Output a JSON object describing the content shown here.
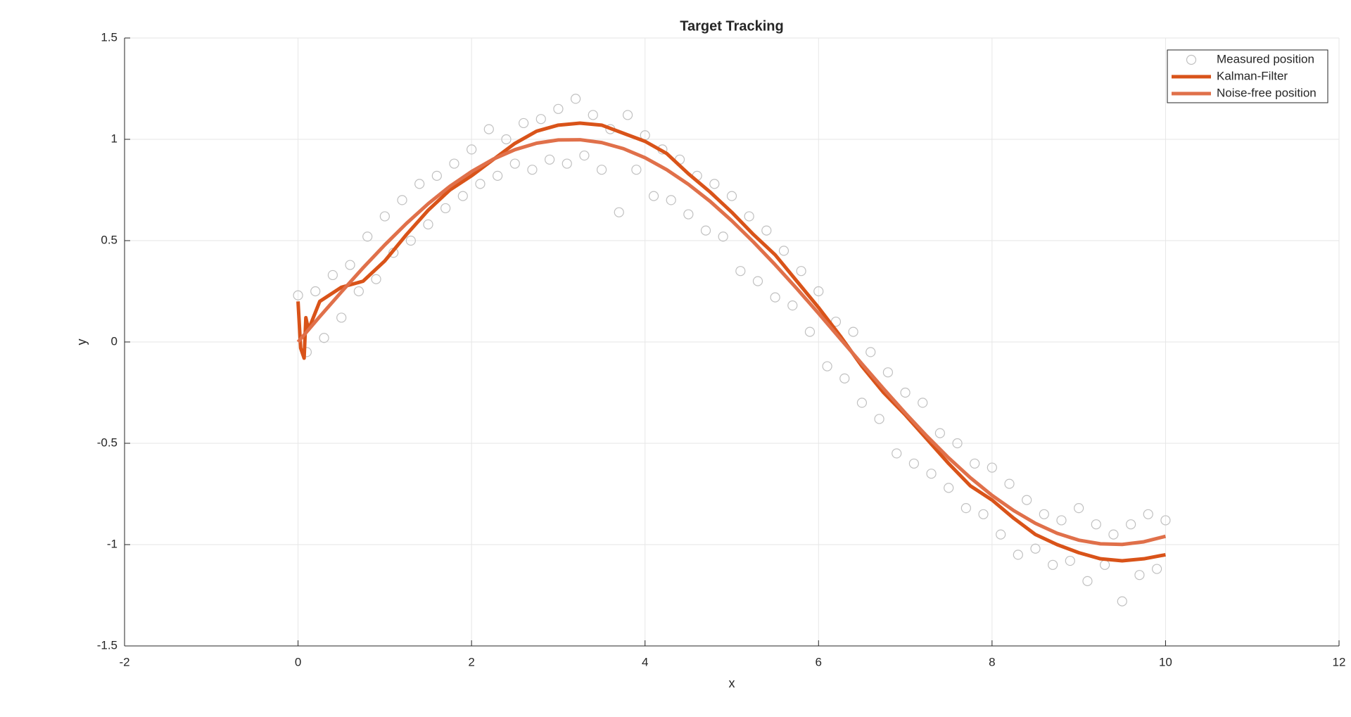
{
  "chart_data": {
    "type": "line",
    "title": "Target Tracking",
    "x_label": "x",
    "y_label": "y",
    "xlim": [
      -2,
      12
    ],
    "ylim": [
      -1.5,
      1.5
    ],
    "xticks": [
      -2,
      0,
      2,
      4,
      6,
      8,
      10,
      12
    ],
    "yticks": [
      -1.5,
      -1,
      -0.5,
      0,
      0.5,
      1,
      1.5
    ],
    "grid": true,
    "legend": "northeast",
    "series": [
      {
        "name": "Measured position",
        "style": "markers",
        "color": "#c0c0c0",
        "x": [
          0,
          0.1,
          0.2,
          0.3,
          0.4,
          0.5,
          0.6,
          0.7,
          0.8,
          0.9,
          1,
          1.1,
          1.2,
          1.3,
          1.4,
          1.5,
          1.6,
          1.7,
          1.8,
          1.9,
          2,
          2.1,
          2.2,
          2.3,
          2.4,
          2.5,
          2.6,
          2.7,
          2.8,
          2.9,
          3,
          3.1,
          3.2,
          3.3,
          3.4,
          3.5,
          3.6,
          3.7,
          3.8,
          3.9,
          4,
          4.1,
          4.2,
          4.3,
          4.4,
          4.5,
          4.6,
          4.7,
          4.8,
          4.9,
          5,
          5.1,
          5.2,
          5.3,
          5.4,
          5.5,
          5.6,
          5.7,
          5.8,
          5.9,
          6,
          6.1,
          6.2,
          6.3,
          6.4,
          6.5,
          6.6,
          6.7,
          6.8,
          6.9,
          7,
          7.1,
          7.2,
          7.3,
          7.4,
          7.5,
          7.6,
          7.7,
          7.8,
          7.9,
          8,
          8.1,
          8.2,
          8.3,
          8.4,
          8.5,
          8.6,
          8.7,
          8.8,
          8.9,
          9,
          9.1,
          9.2,
          9.3,
          9.4,
          9.5,
          9.6,
          9.7,
          9.8,
          9.9,
          10
        ],
        "values": [
          0.23,
          -0.05,
          0.25,
          0.02,
          0.33,
          0.12,
          0.38,
          0.25,
          0.52,
          0.31,
          0.62,
          0.44,
          0.7,
          0.5,
          0.78,
          0.58,
          0.82,
          0.66,
          0.88,
          0.72,
          0.95,
          0.78,
          1.05,
          0.82,
          1,
          0.88,
          1.08,
          0.85,
          1.1,
          0.9,
          1.15,
          0.88,
          1.2,
          0.92,
          1.12,
          0.85,
          1.05,
          0.64,
          1.12,
          0.85,
          1.02,
          0.72,
          0.95,
          0.7,
          0.9,
          0.63,
          0.82,
          0.55,
          0.78,
          0.52,
          0.72,
          0.35,
          0.62,
          0.3,
          0.55,
          0.22,
          0.45,
          0.18,
          0.35,
          0.05,
          0.25,
          -0.12,
          0.1,
          -0.18,
          0.05,
          -0.3,
          -0.05,
          -0.38,
          -0.15,
          -0.55,
          -0.25,
          -0.6,
          -0.3,
          -0.65,
          -0.45,
          -0.72,
          -0.5,
          -0.82,
          -0.6,
          -0.85,
          -0.62,
          -0.95,
          -0.7,
          -1.05,
          -0.78,
          -1.02,
          -0.85,
          -1.1,
          -0.88,
          -1.08,
          -0.82,
          -1.18,
          -0.9,
          -1.1,
          -0.95,
          -1.28,
          -0.9,
          -1.15,
          -0.85,
          -1.12,
          -0.88
        ]
      },
      {
        "name": "Kalman-Filter",
        "style": "line",
        "color": "#d95319",
        "x": [
          0,
          0.03,
          0.07,
          0.09,
          0.12,
          0.25,
          0.5,
          0.75,
          1,
          1.25,
          1.5,
          1.75,
          2,
          2.25,
          2.5,
          2.75,
          3,
          3.25,
          3.5,
          3.75,
          4,
          4.25,
          4.5,
          4.75,
          5,
          5.25,
          5.5,
          5.75,
          6,
          6.25,
          6.5,
          6.75,
          7,
          7.25,
          7.5,
          7.75,
          8,
          8.25,
          8.5,
          8.75,
          9,
          9.25,
          9.5,
          9.75,
          10
        ],
        "values": [
          0.2,
          -0.03,
          -0.08,
          0.12,
          0.06,
          0.2,
          0.27,
          0.3,
          0.4,
          0.53,
          0.65,
          0.75,
          0.82,
          0.9,
          0.98,
          1.04,
          1.07,
          1.08,
          1.07,
          1.03,
          0.99,
          0.93,
          0.83,
          0.74,
          0.64,
          0.53,
          0.43,
          0.3,
          0.17,
          0.03,
          -0.12,
          -0.25,
          -0.36,
          -0.48,
          -0.6,
          -0.71,
          -0.78,
          -0.87,
          -0.95,
          -1,
          -1.04,
          -1.07,
          -1.08,
          -1.07,
          -1.05
        ]
      },
      {
        "name": "Noise-free position",
        "style": "line",
        "color": "#e0704a",
        "x": [
          0,
          0.25,
          0.5,
          0.75,
          1,
          1.25,
          1.5,
          1.75,
          2,
          2.25,
          2.5,
          2.75,
          3,
          3.25,
          3.5,
          3.75,
          4,
          4.25,
          4.5,
          4.75,
          5,
          5.25,
          5.5,
          5.75,
          6,
          6.25,
          6.5,
          6.75,
          7,
          7.25,
          7.5,
          7.75,
          8,
          8.25,
          8.5,
          8.75,
          9,
          9.25,
          9.5,
          9.75,
          10
        ],
        "values": [
          0,
          0.125,
          0.247,
          0.366,
          0.479,
          0.585,
          0.682,
          0.768,
          0.841,
          0.902,
          0.949,
          0.981,
          0.997,
          0.998,
          0.984,
          0.954,
          0.909,
          0.85,
          0.778,
          0.694,
          0.598,
          0.493,
          0.381,
          0.263,
          0.141,
          0.016,
          -0.108,
          -0.231,
          -0.351,
          -0.465,
          -0.572,
          -0.67,
          -0.757,
          -0.832,
          -0.895,
          -0.944,
          -0.978,
          -0.996,
          -0.999,
          -0.986,
          -0.959
        ]
      }
    ]
  }
}
